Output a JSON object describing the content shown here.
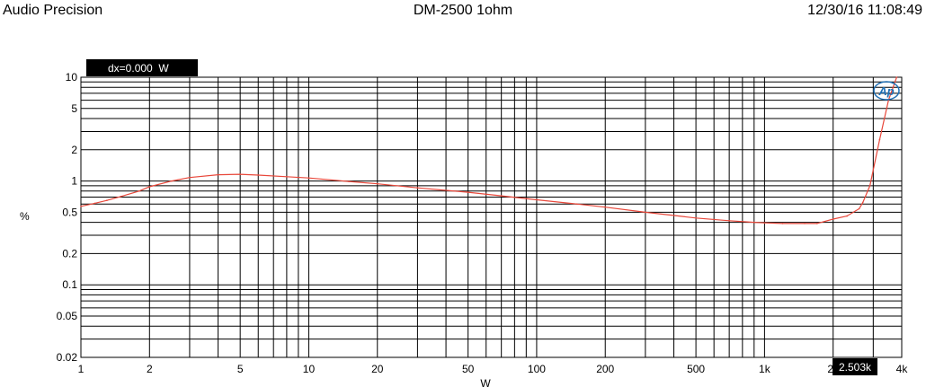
{
  "header": {
    "left": "Audio Precision",
    "center": "DM-2500 1ohm",
    "right": "12/30/16 11:08:49"
  },
  "logo_text": "Ap",
  "cursor_readout": "dx=0.000  W",
  "x_cursor_readout": "2.503k",
  "colors": {
    "trace": "#e8473a",
    "grid": "#000000",
    "readout_bg": "#000000",
    "logo": "#1f6fb4"
  },
  "chart_data": {
    "type": "line",
    "title": "DM-2500 1ohm",
    "xlabel": "W",
    "ylabel": "%",
    "x_scale": "log",
    "y_scale": "log",
    "xlim": [
      1,
      4000
    ],
    "ylim": [
      0.02,
      10
    ],
    "grid": true,
    "x_ticks": [
      {
        "v": 1,
        "label": "1"
      },
      {
        "v": 2,
        "label": "2"
      },
      {
        "v": 5,
        "label": "5"
      },
      {
        "v": 10,
        "label": "10"
      },
      {
        "v": 20,
        "label": "20"
      },
      {
        "v": 50,
        "label": "50"
      },
      {
        "v": 100,
        "label": "100"
      },
      {
        "v": 200,
        "label": "200"
      },
      {
        "v": 500,
        "label": "500"
      },
      {
        "v": 1000,
        "label": "1k"
      },
      {
        "v": 2000,
        "label": "2k"
      },
      {
        "v": 4000,
        "label": "4k"
      }
    ],
    "y_ticks": [
      {
        "v": 10,
        "label": "10"
      },
      {
        "v": 5,
        "label": "5"
      },
      {
        "v": 2,
        "label": "2"
      },
      {
        "v": 1,
        "label": "1"
      },
      {
        "v": 0.5,
        "label": "0.5"
      },
      {
        "v": 0.2,
        "label": "0.2"
      },
      {
        "v": 0.1,
        "label": "0.1"
      },
      {
        "v": 0.05,
        "label": "0.05"
      },
      {
        "v": 0.02,
        "label": "0.02"
      }
    ],
    "series": [
      {
        "color": "#e8473a",
        "x": [
          1,
          1.15,
          1.3,
          1.5,
          1.8,
          2,
          2.5,
          3,
          4,
          5,
          6,
          8,
          10,
          15,
          20,
          30,
          50,
          70,
          100,
          150,
          200,
          300,
          500,
          700,
          900,
          1000,
          1200,
          1500,
          1700,
          2000,
          2300,
          2600,
          2700,
          2900,
          3200,
          3500,
          3800
        ],
        "y": [
          0.57,
          0.61,
          0.65,
          0.71,
          0.8,
          0.88,
          1.0,
          1.08,
          1.15,
          1.16,
          1.14,
          1.1,
          1.07,
          0.99,
          0.94,
          0.86,
          0.78,
          0.72,
          0.66,
          0.6,
          0.56,
          0.5,
          0.44,
          0.415,
          0.4,
          0.395,
          0.39,
          0.39,
          0.39,
          0.43,
          0.46,
          0.54,
          0.62,
          0.9,
          2.5,
          6.0,
          10.0
        ]
      }
    ]
  }
}
